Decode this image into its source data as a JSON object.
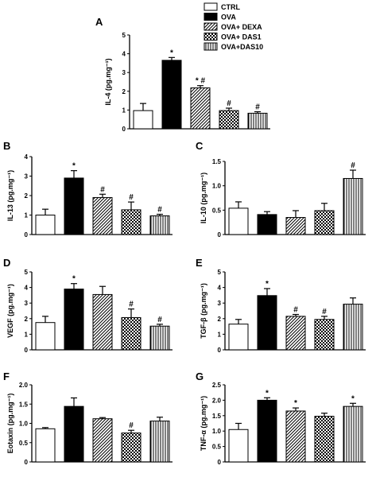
{
  "legend": {
    "placement": "top-right",
    "items": [
      {
        "label": "CTRL",
        "pattern": "white"
      },
      {
        "label": "OVA",
        "pattern": "black"
      },
      {
        "label": "OVA+ DEXA",
        "pattern": "diagonal"
      },
      {
        "label": "OVA+ DAS1",
        "pattern": "checker"
      },
      {
        "label": "OVA+DAS10",
        "pattern": "vertical"
      }
    ]
  },
  "chart_data": [
    {
      "panel": "A",
      "type": "bar",
      "ylabel": "IL-4 (pg.mg⁻¹)",
      "categories": [
        "CTRL",
        "OVA",
        "OVA+ DEXA",
        "OVA+ DAS1",
        "OVA+DAS10"
      ],
      "values": [
        0.97,
        3.65,
        2.18,
        0.97,
        0.83
      ],
      "errors": [
        0.38,
        0.15,
        0.12,
        0.13,
        0.08
      ],
      "annotations": [
        "",
        "*",
        "* #",
        "#",
        "#"
      ],
      "ylim": [
        0,
        5
      ],
      "yticks": [
        "0",
        "1",
        "2",
        "3",
        "4",
        "5"
      ],
      "grid": false
    },
    {
      "panel": "B",
      "type": "bar",
      "ylabel": "IL-13 (pg.mg⁻¹)",
      "categories": [
        "CTRL",
        "OVA",
        "OVA+ DEXA",
        "OVA+ DAS1",
        "OVA+DAS10"
      ],
      "values": [
        1.0,
        2.9,
        1.9,
        1.27,
        0.96
      ],
      "errors": [
        0.3,
        0.38,
        0.17,
        0.4,
        0.08
      ],
      "annotations": [
        "",
        "*",
        "#",
        "#",
        "#"
      ],
      "ylim": [
        0,
        4
      ],
      "yticks": [
        "0",
        "1",
        "2",
        "3",
        "4"
      ],
      "grid": false
    },
    {
      "panel": "C",
      "type": "bar",
      "ylabel": "IL-10 (pg.mg⁻¹)",
      "categories": [
        "CTRL",
        "OVA",
        "OVA+ DEXA",
        "OVA+ DAS1",
        "OVA+DAS10"
      ],
      "values": [
        0.54,
        0.41,
        0.35,
        0.49,
        1.15
      ],
      "errors": [
        0.13,
        0.06,
        0.14,
        0.15,
        0.17
      ],
      "annotations": [
        "",
        "",
        "",
        "",
        "#"
      ],
      "ylim": [
        0,
        1.5
      ],
      "yticks": [
        "0",
        "0.5",
        "1.0",
        "1.5"
      ],
      "grid": false
    },
    {
      "panel": "D",
      "type": "bar",
      "ylabel": "VEGF (pg.mg⁻¹)",
      "categories": [
        "CTRL",
        "OVA",
        "OVA+ DEXA",
        "OVA+ DAS1",
        "OVA+DAS10"
      ],
      "values": [
        1.75,
        3.9,
        3.55,
        2.07,
        1.52
      ],
      "errors": [
        0.4,
        0.35,
        0.52,
        0.55,
        0.12
      ],
      "annotations": [
        "",
        "*",
        "",
        "#",
        "#"
      ],
      "ylim": [
        0,
        5
      ],
      "yticks": [
        "0",
        "1",
        "2",
        "3",
        "4",
        "5"
      ],
      "grid": false
    },
    {
      "panel": "E",
      "type": "bar",
      "ylabel": "TGF-β (pg.mg⁻¹)",
      "categories": [
        "CTRL",
        "OVA",
        "OVA+ DEXA",
        "OVA+ DAS1",
        "OVA+DAS10"
      ],
      "values": [
        1.65,
        3.48,
        2.15,
        1.95,
        2.93
      ],
      "errors": [
        0.3,
        0.45,
        0.12,
        0.2,
        0.4
      ],
      "annotations": [
        "",
        "*",
        "#",
        "#",
        ""
      ],
      "ylim": [
        0,
        5
      ],
      "yticks": [
        "0",
        "1",
        "2",
        "3",
        "4",
        "5"
      ],
      "grid": false
    },
    {
      "panel": "F",
      "type": "bar",
      "ylabel": "Eotaxin (pg.mg⁻¹)",
      "categories": [
        "CTRL",
        "OVA",
        "OVA+ DEXA",
        "OVA+ DAS1",
        "OVA+DAS10"
      ],
      "values": [
        0.86,
        1.44,
        1.12,
        0.75,
        1.06
      ],
      "errors": [
        0.03,
        0.22,
        0.03,
        0.07,
        0.1
      ],
      "annotations": [
        "",
        "",
        "",
        "#",
        ""
      ],
      "ylim": [
        0,
        2.0
      ],
      "yticks": [
        "0",
        "0.5",
        "1.0",
        "1.5",
        "2.0"
      ],
      "grid": false
    },
    {
      "panel": "G",
      "type": "bar",
      "ylabel": "TNF-α (pg.mg⁻¹)",
      "categories": [
        "CTRL",
        "OVA",
        "OVA+ DEXA",
        "OVA+ DAS1",
        "OVA+DAS10"
      ],
      "values": [
        1.05,
        2.0,
        1.65,
        1.48,
        1.8
      ],
      "errors": [
        0.2,
        0.08,
        0.1,
        0.1,
        0.1
      ],
      "annotations": [
        "",
        "*",
        "*",
        "",
        "*"
      ],
      "ylim": [
        0,
        2.5
      ],
      "yticks": [
        "0",
        "0.5",
        "1.0",
        "1.5",
        "2.0",
        "2.5"
      ],
      "grid": false
    }
  ]
}
